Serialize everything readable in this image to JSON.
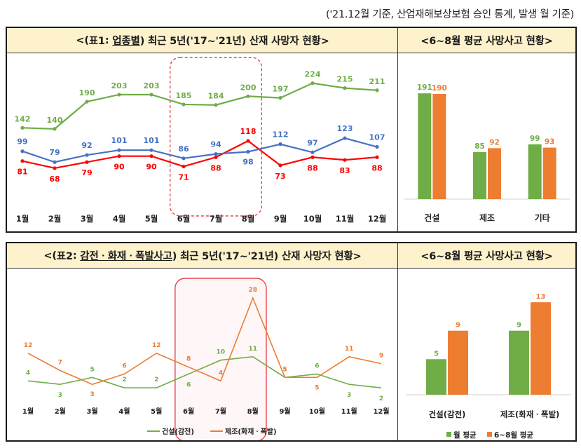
{
  "source_note": "('21.12월 기준, 산업재해보상보험 승인 통계, 발생 월 기준)",
  "panel1": {
    "title_pre": "<(",
    "title_tag": "표1",
    "title_colon": ": ",
    "title_key": "업종별",
    "title_post": ") 최근 5년('17~'21년) 산재 사망자 현황>",
    "side_title": "<6~8월 평균 사망사고 현황>"
  },
  "panel2": {
    "title_pre": "<(",
    "title_tag": "표2",
    "title_colon": ": ",
    "title_key": "감전ㆍ화재ㆍ폭발사고",
    "title_post": ") 최근 5년('17~'21년) 산재 사망자 현황>",
    "side_title": "<6~8월 평균 사망사고 현황>"
  },
  "chart_data": [
    {
      "type": "line",
      "categories": [
        "1월",
        "2월",
        "3월",
        "4월",
        "5월",
        "6월",
        "7월",
        "8월",
        "9월",
        "10월",
        "11월",
        "12월"
      ],
      "series": [
        {
          "name": "건설",
          "color": "#70ad47",
          "values": [
            142,
            140,
            190,
            203,
            203,
            185,
            184,
            200,
            197,
            224,
            215,
            211
          ]
        },
        {
          "name": "제조",
          "color": "#ff0000",
          "values": [
            81,
            68,
            79,
            90,
            90,
            71,
            88,
            118,
            73,
            88,
            83,
            88
          ]
        },
        {
          "name": "기타",
          "color": "#4472c4",
          "values": [
            99,
            79,
            92,
            101,
            101,
            86,
            94,
            98,
            112,
            97,
            123,
            107
          ]
        }
      ],
      "highlight": [
        "6월",
        "7월",
        "8월"
      ],
      "legend_position": "bottom"
    },
    {
      "type": "bar",
      "categories": [
        "건설",
        "제조",
        "기타"
      ],
      "series": [
        {
          "name": "월평균",
          "color": "#70ad47",
          "values": [
            191,
            85,
            99
          ]
        },
        {
          "name": "6~8월 평균",
          "color": "#ed7d31",
          "values": [
            190,
            92,
            93
          ]
        }
      ],
      "legend_position": "bottom"
    },
    {
      "type": "line",
      "categories": [
        "1월",
        "2월",
        "3월",
        "4월",
        "5월",
        "6월",
        "7월",
        "8월",
        "9월",
        "10월",
        "11월",
        "12월"
      ],
      "series": [
        {
          "name": "건설(감전)",
          "color": "#70ad47",
          "values": [
            4,
            3,
            5,
            2,
            2,
            6,
            10,
            11,
            5,
            6,
            3,
            2
          ]
        },
        {
          "name": "제조(화재ㆍ폭발)",
          "color": "#ed7d31",
          "values": [
            12,
            7,
            3,
            6,
            12,
            8,
            4,
            28,
            5,
            5,
            11,
            9
          ]
        }
      ],
      "highlight": [
        "6월",
        "7월",
        "8월"
      ],
      "legend_position": "bottom"
    },
    {
      "type": "bar",
      "categories": [
        "건설(감전)",
        "제조(화재ㆍ폭발)"
      ],
      "series": [
        {
          "name": "월 평균",
          "color": "#70ad47",
          "values": [
            5,
            9
          ]
        },
        {
          "name": "6~8월 평균",
          "color": "#ed7d31",
          "values": [
            9,
            13
          ]
        }
      ],
      "legend_position": "bottom"
    }
  ]
}
